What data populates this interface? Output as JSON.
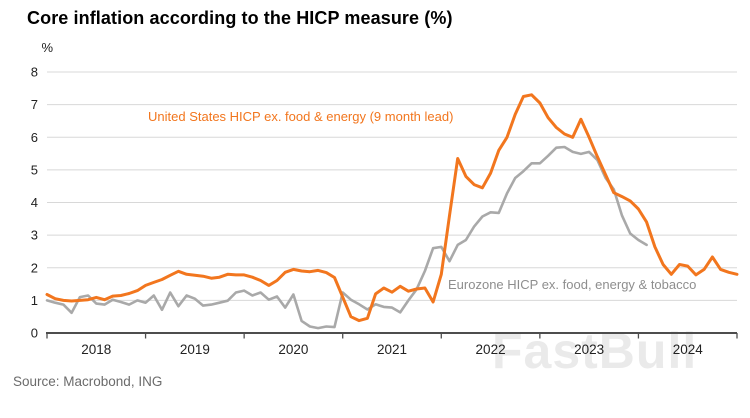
{
  "header": {
    "title": "Core inflation according to the HICP measure (%)"
  },
  "source": {
    "label": "Source: Macrobond, ING"
  },
  "watermark": {
    "label": "FastBull"
  },
  "chart_data": {
    "type": "line",
    "title": "Core inflation according to the HICP measure (%)",
    "xlabel": "",
    "ylabel": "%",
    "ylim": [
      0,
      8
    ],
    "y_ticks": [
      0,
      1,
      2,
      3,
      4,
      5,
      6,
      7,
      8
    ],
    "x_tick_years": [
      "2018",
      "2019",
      "2020",
      "2021",
      "2022",
      "2023",
      "2024"
    ],
    "x_start": "2018-01",
    "x_range_months": 84,
    "grid": true,
    "legend_position": "inline-annotations",
    "colors": {
      "grid": "#d8d8d8",
      "axis": "#4d4d4d",
      "tick_label": "#222222"
    },
    "series": [
      {
        "id": "us-hicp",
        "name": "United States HICP ex. food & energy (9 month lead)",
        "color": "#f2761e",
        "start_month": 0,
        "values": [
          1.18,
          1.05,
          1.0,
          0.98,
          1.0,
          1.02,
          1.09,
          1.02,
          1.13,
          1.15,
          1.21,
          1.3,
          1.46,
          1.55,
          1.64,
          1.77,
          1.89,
          1.8,
          1.77,
          1.74,
          1.68,
          1.71,
          1.8,
          1.78,
          1.78,
          1.71,
          1.61,
          1.46,
          1.61,
          1.86,
          1.95,
          1.9,
          1.88,
          1.92,
          1.85,
          1.7,
          1.1,
          0.5,
          0.38,
          0.45,
          1.2,
          1.38,
          1.25,
          1.43,
          1.28,
          1.35,
          1.38,
          0.95,
          1.8,
          3.6,
          5.35,
          4.8,
          4.55,
          4.45,
          4.9,
          5.6,
          6.0,
          6.7,
          7.25,
          7.3,
          7.05,
          6.6,
          6.3,
          6.1,
          6.0,
          6.55,
          6.0,
          5.4,
          4.85,
          4.3,
          4.18,
          4.05,
          3.8,
          3.4,
          2.64,
          2.1,
          1.8,
          2.1,
          2.05,
          1.78,
          1.95,
          2.33,
          1.95,
          1.86,
          1.8
        ]
      },
      {
        "id": "eurozone-hicp",
        "name": "Eurozone HICP ex. food, energy & tobacco",
        "color": "#a9a9a9",
        "start_month": 0,
        "values": [
          1.0,
          0.93,
          0.87,
          0.62,
          1.1,
          1.15,
          0.9,
          0.87,
          1.02,
          0.95,
          0.87,
          1.0,
          0.93,
          1.15,
          0.71,
          1.24,
          0.82,
          1.15,
          1.05,
          0.84,
          0.87,
          0.93,
          0.99,
          1.24,
          1.3,
          1.15,
          1.24,
          1.02,
          1.12,
          0.78,
          1.18,
          0.37,
          0.2,
          0.15,
          0.2,
          0.18,
          1.24,
          1.02,
          0.88,
          0.72,
          0.88,
          0.8,
          0.78,
          0.63,
          1.0,
          1.34,
          1.9,
          2.6,
          2.64,
          2.2,
          2.7,
          2.85,
          3.26,
          3.57,
          3.7,
          3.68,
          4.28,
          4.75,
          4.96,
          5.2,
          5.2,
          5.43,
          5.68,
          5.7,
          5.55,
          5.49,
          5.55,
          5.3,
          4.75,
          4.4,
          3.6,
          3.05,
          2.85,
          2.7
        ]
      }
    ]
  }
}
